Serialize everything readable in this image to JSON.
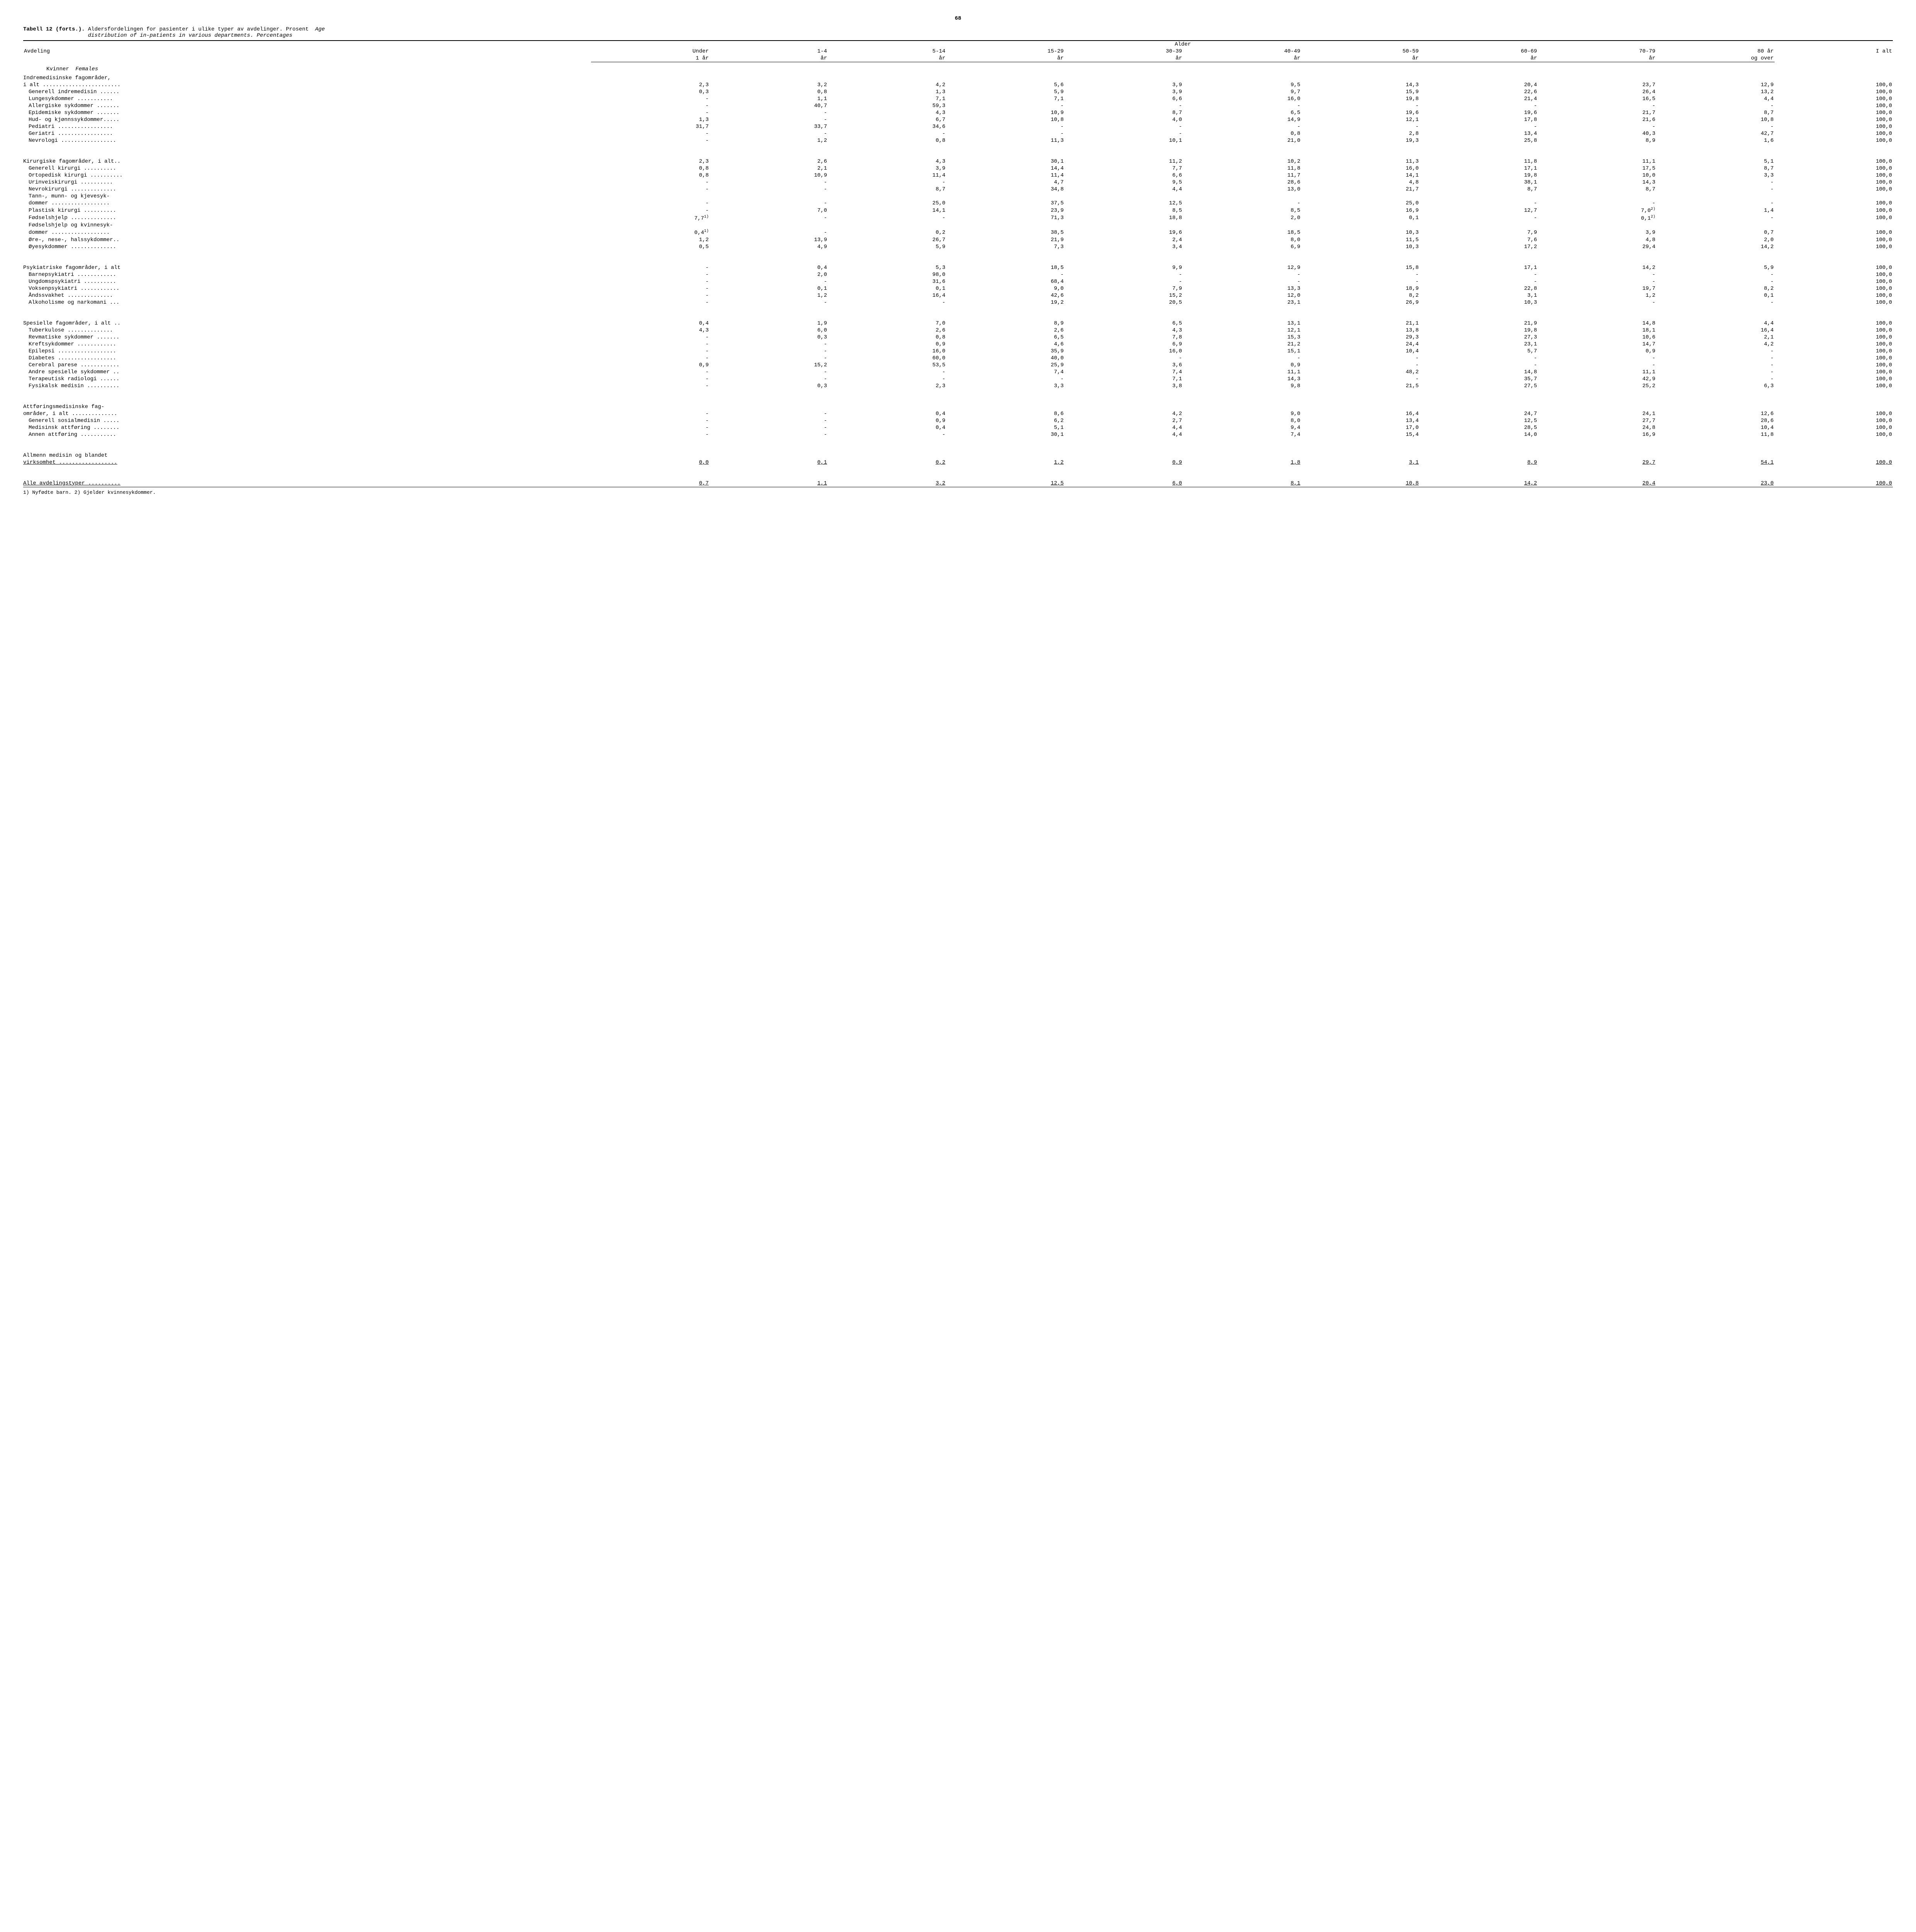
{
  "page_number": "68",
  "title_lead": "Tabell 12 (forts.).",
  "title_no": "Aldersfordelingen for pasienter i ulike typer av avdelinger.  Prosent",
  "title_en_word1": "Age",
  "title_en_rest": "distribution of in-patients in various departments.  Percentages",
  "super_header": "Alder",
  "col_dept": "Avdeling",
  "col_ialt": "I alt",
  "columns_top": [
    "Under",
    "1-4",
    "5-14",
    "15-29",
    "30-39",
    "40-49",
    "50-59",
    "60-69",
    "70-79",
    "80 år"
  ],
  "columns_bottom": [
    "1 år",
    "år",
    "år",
    "år",
    "år",
    "år",
    "år",
    "år",
    "år",
    "og over"
  ],
  "sex_label_no": "Kvinner",
  "sex_label_en": "Females",
  "footnote": "1) Nyfødte barn.  2) Gjelder kvinnesykdommer.",
  "groups": [
    {
      "rows": [
        {
          "indent": 0,
          "label": "Indremedisinske fagområder,",
          "vals": [
            "",
            "",
            "",
            "",
            "",
            "",
            "",
            "",
            "",
            "",
            ""
          ]
        },
        {
          "indent": 0,
          "label": "i alt ........................",
          "vals": [
            "2,3",
            "3,2",
            "4,2",
            "5,6",
            "3,9",
            "9,5",
            "14,3",
            "20,4",
            "23,7",
            "12,9",
            "100,0"
          ]
        },
        {
          "indent": 1,
          "label": "Generell indremedisin ......",
          "vals": [
            "0,3",
            "0,8",
            "1,3",
            "5,9",
            "3,9",
            "9,7",
            "15,9",
            "22,6",
            "26,4",
            "13,2",
            "100,0"
          ]
        },
        {
          "indent": 1,
          "label": "Lungesykdommer ...........",
          "vals": [
            "-",
            "1,1",
            "7,1",
            "7,1",
            "6,6",
            "16,0",
            "19,8",
            "21,4",
            "16,5",
            "4,4",
            "100,0"
          ]
        },
        {
          "indent": 1,
          "label": "Allergiske sykdommer .......",
          "vals": [
            "-",
            "40,7",
            "59,3",
            "-",
            "-",
            "-",
            "-",
            "-",
            "-",
            "-",
            "100,0"
          ]
        },
        {
          "indent": 1,
          "label": "Epidemiske sykdommer .......",
          "vals": [
            "-",
            "-",
            "4,3",
            "10,9",
            "8,7",
            "6,5",
            "19,6",
            "19,6",
            "21,7",
            "8,7",
            "100,0"
          ]
        },
        {
          "indent": 1,
          "label": "Hud- og kjønnssykdommer.....",
          "vals": [
            "1,3",
            "-",
            "6,7",
            "10,8",
            "4,0",
            "14,9",
            "12,1",
            "17,8",
            "21,6",
            "10,8",
            "100,0"
          ]
        },
        {
          "indent": 1,
          "label": "Pediatri .................",
          "vals": [
            "31,7",
            "33,7",
            "34,6",
            "-",
            "-",
            "-",
            "-",
            "-",
            "-",
            "-",
            "100,0"
          ]
        },
        {
          "indent": 1,
          "label": "Geriatri .................",
          "vals": [
            "-",
            "-",
            "-",
            "-",
            "-",
            "0,8",
            "2,8",
            "13,4",
            "40,3",
            "42,7",
            "100,0"
          ]
        },
        {
          "indent": 1,
          "label": "Nevrologi .................",
          "vals": [
            "-",
            "1,2",
            "0,8",
            "11,3",
            "10,1",
            "21,0",
            "19,3",
            "25,8",
            "8,9",
            "1,6",
            "100,0"
          ]
        }
      ]
    },
    {
      "rows": [
        {
          "indent": 0,
          "label": "Kirurgiske fagområder, i alt..",
          "vals": [
            "2,3",
            "2,6",
            "4,3",
            "30,1",
            "11,2",
            "10,2",
            "11,3",
            "11,8",
            "11,1",
            "5,1",
            "100,0"
          ]
        },
        {
          "indent": 1,
          "label": "Generell kirurgi ..........",
          "vals": [
            "0,8",
            "2,1",
            "3,9",
            "14,4",
            "7,7",
            "11,8",
            "16,0",
            "17,1",
            "17,5",
            "8,7",
            "100,0"
          ]
        },
        {
          "indent": 1,
          "label": "Ortopedisk kirurgi ..........",
          "vals": [
            "0,8",
            "10,9",
            "11,4",
            "11,4",
            "6,6",
            "11,7",
            "14,1",
            "19,8",
            "10,0",
            "3,3",
            "100,0"
          ]
        },
        {
          "indent": 1,
          "label": "Urinveiskirurgi ..........",
          "vals": [
            "-",
            "-",
            "-",
            "4,7",
            "9,5",
            "28,6",
            "4,8",
            "38,1",
            "14,3",
            "-",
            "100,0"
          ]
        },
        {
          "indent": 1,
          "label": "Nevrokirurgi ..............",
          "vals": [
            "-",
            "-",
            "8,7",
            "34,8",
            "4,4",
            "13,0",
            "21,7",
            "8,7",
            "8,7",
            "-",
            "100,0"
          ]
        },
        {
          "indent": 1,
          "label": "Tann-, munn- og kjevesyk-",
          "vals": [
            "",
            "",
            "",
            "",
            "",
            "",
            "",
            "",
            "",
            "",
            ""
          ]
        },
        {
          "indent": 1,
          "label": "dommer ..................",
          "vals": [
            "-",
            "-",
            "25,0",
            "37,5",
            "12,5",
            "-",
            "25,0",
            "-",
            "-",
            "-",
            "100,0"
          ]
        },
        {
          "indent": 1,
          "label": "Plastisk kirurgi ..........",
          "sup0": "",
          "sup8": "2)",
          "vals": [
            "-",
            "7,0",
            "14,1",
            "23,9",
            "8,5",
            "8,5",
            "16,9",
            "12,7",
            "7,0",
            "1,4",
            "100,0"
          ]
        },
        {
          "indent": 1,
          "label": "Fødselshjelp ..............",
          "sup0": "1)",
          "sup8": "2)",
          "vals": [
            "7,7",
            "-",
            "-",
            "71,3",
            "18,8",
            "2,0",
            "0,1",
            "-",
            "0,1",
            "-",
            "100,0"
          ]
        },
        {
          "indent": 1,
          "label": "Fødselshjelp og kvinnesyk-",
          "vals": [
            "",
            "",
            "",
            "",
            "",
            "",
            "",
            "",
            "",
            "",
            ""
          ]
        },
        {
          "indent": 1,
          "label": "dommer ..................",
          "sup0": "1)",
          "vals": [
            "0,4",
            "-",
            "0,2",
            "38,5",
            "19,6",
            "18,5",
            "10,3",
            "7,9",
            "3,9",
            "0,7",
            "100,0"
          ]
        },
        {
          "indent": 1,
          "label": "Øre-, nese-, halssykdommer..",
          "vals": [
            "1,2",
            "13,9",
            "26,7",
            "21,9",
            "2,4",
            "8,0",
            "11,5",
            "7,6",
            "4,8",
            "2,0",
            "100,0"
          ]
        },
        {
          "indent": 1,
          "label": "Øyesykdommer ..............",
          "vals": [
            "0,5",
            "4,9",
            "5,9",
            "7,3",
            "3,4",
            "6,9",
            "10,3",
            "17,2",
            "29,4",
            "14,2",
            "100,0"
          ]
        }
      ]
    },
    {
      "rows": [
        {
          "indent": 0,
          "label": "Psykiatriske fagområder, i alt",
          "vals": [
            "-",
            "0,4",
            "5,3",
            "18,5",
            "9,9",
            "12,9",
            "15,8",
            "17,1",
            "14,2",
            "5,9",
            "100,0"
          ]
        },
        {
          "indent": 1,
          "label": "Barnepsykiatri ............",
          "vals": [
            "-",
            "2,0",
            "98,0",
            "-",
            "-",
            "-",
            "-",
            "-",
            "-",
            "-",
            "100,0"
          ]
        },
        {
          "indent": 1,
          "label": "Ungdomspsykiatri ..........",
          "vals": [
            "-",
            "-",
            "31,6",
            "68,4",
            "-",
            "-",
            "-",
            "-",
            "-",
            "-",
            "100,0"
          ]
        },
        {
          "indent": 1,
          "label": "Voksenpsykiatri ............",
          "vals": [
            "-",
            "0,1",
            "0,1",
            "9,0",
            "7,9",
            "13,3",
            "18,9",
            "22,8",
            "19,7",
            "8,2",
            "100,0"
          ]
        },
        {
          "indent": 1,
          "label": "Åndssvakhet ..............",
          "vals": [
            "-",
            "1,2",
            "16,4",
            "42,6",
            "15,2",
            "12,0",
            "8,2",
            "3,1",
            "1,2",
            "0,1",
            "100,0"
          ]
        },
        {
          "indent": 1,
          "label": "Alkoholisme og narkomani ...",
          "vals": [
            "-",
            "-",
            "-",
            "19,2",
            "20,5",
            "23,1",
            "26,9",
            "10,3",
            "-",
            "-",
            "100,0"
          ]
        }
      ]
    },
    {
      "rows": [
        {
          "indent": 0,
          "label": "Spesielle fagområder, i alt ..",
          "vals": [
            "0,4",
            "1,9",
            "7,0",
            "8,9",
            "6,5",
            "13,1",
            "21,1",
            "21,9",
            "14,8",
            "4,4",
            "100,0"
          ]
        },
        {
          "indent": 1,
          "label": "Tuberkulose ..............",
          "vals": [
            "4,3",
            "6,0",
            "2,6",
            "2,6",
            "4,3",
            "12,1",
            "13,8",
            "19,8",
            "18,1",
            "16,4",
            "100,0"
          ]
        },
        {
          "indent": 1,
          "label": "Revmatiske sykdommer .......",
          "vals": [
            "-",
            "0,3",
            "0,8",
            "6,5",
            "7,8",
            "15,3",
            "29,3",
            "27,3",
            "10,6",
            "2,1",
            "100,0"
          ]
        },
        {
          "indent": 1,
          "label": "Kreftsykdommer ............",
          "vals": [
            "-",
            "-",
            "0,9",
            "4,6",
            "6,9",
            "21,2",
            "24,4",
            "23,1",
            "14,7",
            "4,2",
            "100,0"
          ]
        },
        {
          "indent": 1,
          "label": "Epilepsi ..................",
          "vals": [
            "-",
            "-",
            "16,0",
            "35,9",
            "16,0",
            "15,1",
            "10,4",
            "5,7",
            "0,9",
            "-",
            "100,0"
          ]
        },
        {
          "indent": 1,
          "label": "Diabetes ..................",
          "vals": [
            "-",
            "-",
            "60,0",
            "40,0",
            "-",
            "-",
            "-",
            "-",
            "-",
            "-",
            "100,0"
          ]
        },
        {
          "indent": 1,
          "label": "Cerebral parese ............",
          "vals": [
            "0,9",
            "15,2",
            "53,5",
            "25,9",
            "3,6",
            "0,9",
            "-",
            "-",
            "-",
            "-",
            "100,0"
          ]
        },
        {
          "indent": 1,
          "label": "Andre spesielle sykdommer ..",
          "vals": [
            "-",
            "-",
            "-",
            "7,4",
            "7,4",
            "11,1",
            "48,2",
            "14,8",
            "11,1",
            "-",
            "100,0"
          ]
        },
        {
          "indent": 1,
          "label": "Terapeutisk radiologi ......",
          "vals": [
            "-",
            "-",
            "-",
            "-",
            "7,1",
            "14,3",
            "-",
            "35,7",
            "42,9",
            "-",
            "100,0"
          ]
        },
        {
          "indent": 1,
          "label": "Fysikalsk medisin ..........",
          "vals": [
            "-",
            "0,3",
            "2,3",
            "3,3",
            "3,8",
            "9,8",
            "21,5",
            "27,5",
            "25,2",
            "6,3",
            "100,0"
          ]
        }
      ]
    },
    {
      "rows": [
        {
          "indent": 0,
          "label": "Attføringsmedisinske fag-",
          "vals": [
            "",
            "",
            "",
            "",
            "",
            "",
            "",
            "",
            "",
            "",
            ""
          ]
        },
        {
          "indent": 0,
          "label": "områder, i alt ..............",
          "vals": [
            "-",
            "-",
            "0,4",
            "8,6",
            "4,2",
            "9,0",
            "16,4",
            "24,7",
            "24,1",
            "12,6",
            "100,0"
          ]
        },
        {
          "indent": 1,
          "label": "Generell sosialmedisin .....",
          "vals": [
            "-",
            "-",
            "0,9",
            "6,2",
            "2,7",
            "8,0",
            "13,4",
            "12,5",
            "27,7",
            "28,6",
            "100,0"
          ]
        },
        {
          "indent": 1,
          "label": "Medisinsk attføring ........",
          "vals": [
            "-",
            "-",
            "0,4",
            "5,1",
            "4,4",
            "9,4",
            "17,0",
            "28,5",
            "24,8",
            "10,4",
            "100,0"
          ]
        },
        {
          "indent": 1,
          "label": "Annen attføring ...........",
          "vals": [
            "-",
            "-",
            "-",
            "30,1",
            "4,4",
            "7,4",
            "15,4",
            "14,0",
            "16,9",
            "11,8",
            "100,0"
          ]
        }
      ]
    },
    {
      "rows": [
        {
          "indent": 0,
          "label": "Allmenn medisin og blandet",
          "vals": [
            "",
            "",
            "",
            "",
            "",
            "",
            "",
            "",
            "",
            "",
            ""
          ]
        },
        {
          "indent": 0,
          "label": "virksomhet ..................",
          "underline": true,
          "vals": [
            "0,0",
            "0,1",
            "0,2",
            "1,2",
            "0,9",
            "1,8",
            "3,1",
            "8,9",
            "29,7",
            "54,1",
            "100,0"
          ]
        }
      ]
    },
    {
      "rows": [
        {
          "indent": 0,
          "label": "Alle avdelingstyper ..........",
          "underline": true,
          "vals": [
            "0,7",
            "1,1",
            "3,2",
            "12,5",
            "6,0",
            "8,1",
            "10,8",
            "14,2",
            "20,4",
            "23,0",
            "100,0"
          ]
        }
      ]
    }
  ]
}
